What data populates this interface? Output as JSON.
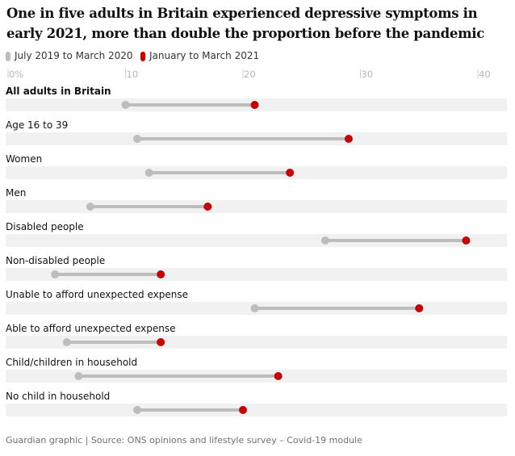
{
  "chart_data": {
    "type": "dumbbell",
    "title": "One in five adults in Britain experienced depressive symptoms in early 2021, more than double the proportion before the pandemic",
    "series": [
      {
        "name": "July 2019 to March 2020",
        "color": "#bdbdbd"
      },
      {
        "name": "January to March 2021",
        "color": "#c70000"
      }
    ],
    "x_ticks": [
      "0%",
      "10",
      "20",
      "30",
      "40"
    ],
    "x_tick_values": [
      0,
      10,
      20,
      30,
      40
    ],
    "xlim": [
      0,
      40
    ],
    "categories": [
      "All adults in Britain",
      "Age 16 to 39",
      "Women",
      "Men",
      "Disabled people",
      "Non-disabled people",
      "Unable to afford unexpected expense",
      "Able to afford unexpected expense",
      "Child/children in household",
      "No child in household"
    ],
    "before": [
      10,
      11,
      12,
      7,
      27,
      4,
      21,
      5,
      6,
      11
    ],
    "after": [
      21,
      29,
      24,
      17,
      39,
      13,
      35,
      13,
      23,
      20
    ],
    "source": "Guardian graphic | Source: ONS opinions and lifestyle survey – Covid-19 module"
  }
}
